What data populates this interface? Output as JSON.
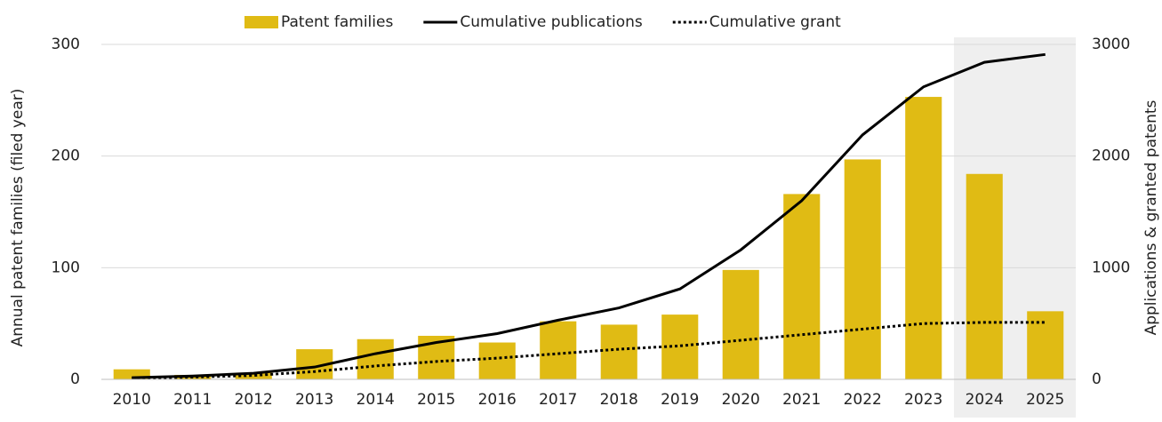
{
  "chart_data": {
    "type": "bar_line",
    "categories": [
      "2010",
      "2011",
      "2012",
      "2013",
      "2014",
      "2015",
      "2016",
      "2017",
      "2018",
      "2019",
      "2020",
      "2021",
      "2022",
      "2023",
      "2024",
      "2025"
    ],
    "ylabel": "Annual patent families (filed year)",
    "y2label": "Applications & granted patents",
    "ylim": [
      0,
      300
    ],
    "yticks": [
      0,
      100,
      200,
      300
    ],
    "y2lim": [
      0,
      3000
    ],
    "y2ticks": [
      0,
      1000,
      2000,
      3000
    ],
    "grid": true,
    "legend": "top",
    "shaded_categories": [
      14,
      15
    ],
    "series": [
      {
        "name": "Patent families",
        "type": "bar",
        "color": "#e0bb14",
        "values": [
          9,
          4,
          6,
          27,
          36,
          39,
          33,
          52,
          49,
          58,
          98,
          166,
          197,
          253,
          184,
          61
        ]
      },
      {
        "name": "Cumulative publications",
        "type": "line",
        "axis": "y2",
        "color": "#000000",
        "style": "solid",
        "values": [
          15,
          30,
          55,
          110,
          230,
          330,
          410,
          530,
          640,
          810,
          1160,
          1600,
          2190,
          2620,
          2840,
          2910
        ]
      },
      {
        "name": "Cumulative grant",
        "type": "line",
        "axis": "y2",
        "color": "#000000",
        "style": "dotted",
        "values": [
          10,
          20,
          35,
          70,
          120,
          160,
          190,
          230,
          270,
          300,
          350,
          400,
          450,
          500,
          510,
          510
        ]
      }
    ]
  }
}
